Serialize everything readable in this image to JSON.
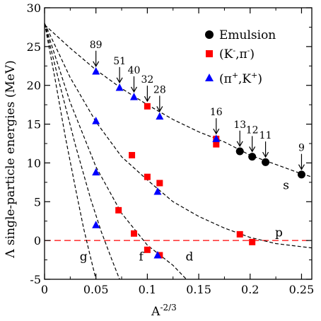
{
  "chart_data": {
    "type": "scatter",
    "xlabel": "A",
    "xlabel_sup": "-2/3",
    "ylabel": "Λ single-particle energies (MeV)",
    "xlim": [
      0,
      0.26
    ],
    "ylim": [
      -5,
      30
    ],
    "x_ticks": [
      0,
      0.05,
      0.1,
      0.15,
      0.2,
      0.25
    ],
    "x_tick_labels": [
      "0",
      "0.05",
      "0.1",
      "0.15",
      "0.2",
      "0.25"
    ],
    "y_ticks": [
      -5,
      0,
      5,
      10,
      15,
      20,
      25,
      30
    ],
    "y_tick_labels": [
      "-5",
      "0",
      "5",
      "10",
      "15",
      "20",
      "25",
      "30"
    ],
    "legend_position": "top-right",
    "legend": [
      {
        "marker": "circle",
        "color": "#000000",
        "label": "Emulsion"
      },
      {
        "marker": "square",
        "color": "#ff0000",
        "base": "(K",
        "sup1": "-",
        "mid": ",π",
        "sup2": "-",
        "tail": ")"
      },
      {
        "marker": "triangle",
        "color": "#0000ff",
        "base": "(π",
        "sup1": "+",
        "mid": ",K",
        "sup2": "+",
        "tail": ")"
      }
    ],
    "series": [
      {
        "name": "Emulsion",
        "marker": "circle",
        "color": "#000000",
        "points": [
          [
            0.19,
            11.5
          ],
          [
            0.202,
            10.8
          ],
          [
            0.215,
            10.1
          ],
          [
            0.25,
            8.5
          ]
        ]
      },
      {
        "name": "(K-,π-)",
        "marker": "square",
        "color": "#ff0000",
        "points": [
          [
            0.085,
            11.0
          ],
          [
            0.1,
            17.3
          ],
          [
            0.1,
            8.2
          ],
          [
            0.112,
            7.4
          ],
          [
            0.167,
            12.4
          ],
          [
            0.167,
            13.1
          ],
          [
            0.072,
            3.9
          ],
          [
            0.087,
            0.9
          ],
          [
            0.1,
            -1.2
          ],
          [
            0.112,
            -1.9
          ],
          [
            0.19,
            0.8
          ],
          [
            0.202,
            -0.2
          ]
        ]
      },
      {
        "name": "(π+,K+)",
        "marker": "triangle",
        "color": "#0000ff",
        "points": [
          [
            0.05,
            21.8
          ],
          [
            0.073,
            19.7
          ],
          [
            0.087,
            18.5
          ],
          [
            0.112,
            16.0
          ],
          [
            0.167,
            13.1
          ],
          [
            0.05,
            15.4
          ],
          [
            0.05,
            8.8
          ],
          [
            0.11,
            6.3
          ],
          [
            0.05,
            2.0
          ],
          [
            0.11,
            -1.9
          ]
        ]
      }
    ],
    "curves": [
      {
        "label": "s",
        "points": [
          [
            0,
            27.8
          ],
          [
            0.025,
            24.8
          ],
          [
            0.05,
            22.0
          ],
          [
            0.075,
            19.6
          ],
          [
            0.1,
            17.5
          ],
          [
            0.125,
            15.6
          ],
          [
            0.15,
            14.0
          ],
          [
            0.175,
            12.7
          ],
          [
            0.2,
            11.0
          ],
          [
            0.225,
            9.8
          ],
          [
            0.25,
            8.6
          ],
          [
            0.26,
            8.2
          ]
        ]
      },
      {
        "label": "p",
        "points": [
          [
            0,
            28.0
          ],
          [
            0.025,
            21.0
          ],
          [
            0.05,
            15.3
          ],
          [
            0.075,
            10.8
          ],
          [
            0.1,
            7.8
          ],
          [
            0.125,
            5.0
          ],
          [
            0.15,
            3.1
          ],
          [
            0.175,
            1.6
          ],
          [
            0.2,
            0.4
          ],
          [
            0.225,
            -0.4
          ],
          [
            0.25,
            -0.8
          ],
          [
            0.26,
            -0.95
          ]
        ]
      },
      {
        "label": "d",
        "points": [
          [
            0,
            28.0
          ],
          [
            0.025,
            17.8
          ],
          [
            0.05,
            9.5
          ],
          [
            0.075,
            3.5
          ],
          [
            0.1,
            -0.6
          ],
          [
            0.125,
            -3.2
          ],
          [
            0.138,
            -5.0
          ]
        ]
      },
      {
        "label": "f",
        "points": [
          [
            0,
            28.0
          ],
          [
            0.015,
            20.0
          ],
          [
            0.03,
            12.3
          ],
          [
            0.045,
            5.3
          ],
          [
            0.055,
            1.2
          ],
          [
            0.065,
            -2.3
          ],
          [
            0.073,
            -5.0
          ]
        ]
      },
      {
        "label": "g",
        "points": [
          [
            0,
            28.0
          ],
          [
            0.01,
            21.0
          ],
          [
            0.02,
            13.5
          ],
          [
            0.03,
            6.8
          ],
          [
            0.038,
            1.6
          ],
          [
            0.045,
            -2.3
          ],
          [
            0.05,
            -5.0
          ]
        ]
      }
    ],
    "curve_label_positions": [
      {
        "label": "s",
        "at": [
          0.235,
          6.6
        ]
      },
      {
        "label": "p",
        "at": [
          0.228,
          0.5
        ]
      },
      {
        "label": "d",
        "at": [
          0.141,
          -2.6
        ]
      },
      {
        "label": "f",
        "at": [
          0.094,
          -2.6
        ]
      },
      {
        "label": "g",
        "at": [
          0.038,
          -2.6
        ]
      }
    ],
    "reference_line": {
      "y": 0,
      "color": "#ff0000",
      "style": "dashed"
    },
    "annotations": [
      {
        "text": "89",
        "at": [
          0.05,
          22.0
        ]
      },
      {
        "text": "51",
        "at": [
          0.073,
          19.9
        ]
      },
      {
        "text": "40",
        "at": [
          0.087,
          18.7
        ]
      },
      {
        "text": "32",
        "at": [
          0.1,
          17.5
        ]
      },
      {
        "text": "28",
        "at": [
          0.112,
          16.2
        ]
      },
      {
        "text": "16",
        "at": [
          0.167,
          13.3
        ]
      },
      {
        "text": "13",
        "at": [
          0.19,
          11.7
        ]
      },
      {
        "text": "12",
        "at": [
          0.202,
          11.0
        ]
      },
      {
        "text": "11",
        "at": [
          0.215,
          10.3
        ]
      },
      {
        "text": "9",
        "at": [
          0.25,
          8.7
        ]
      }
    ]
  }
}
